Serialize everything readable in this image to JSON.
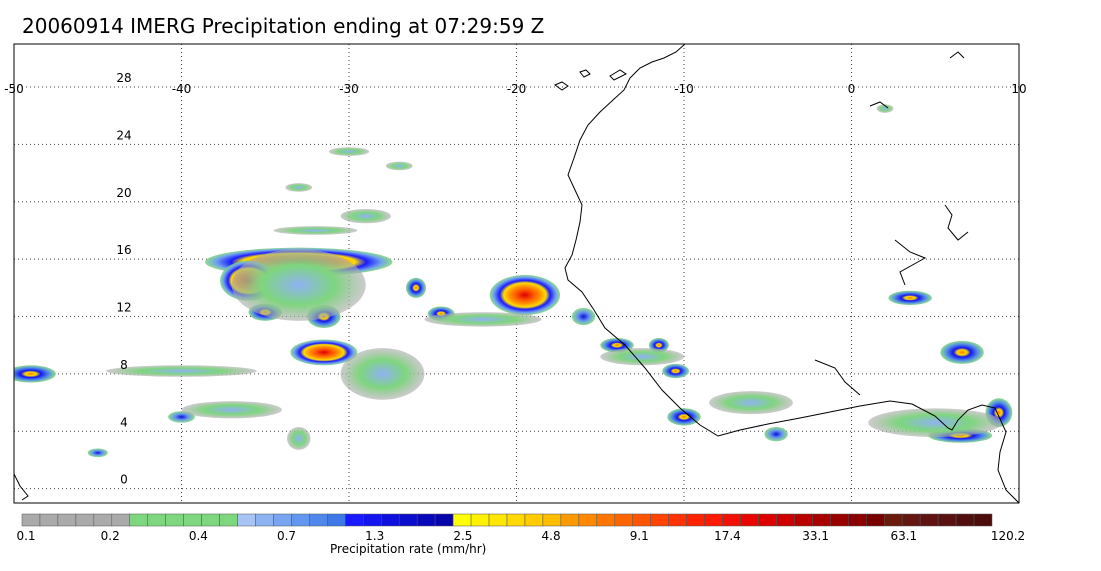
{
  "title": "20060914 IMERG Precipitation ending at 07:29:59 Z",
  "map": {
    "lon_range": [
      -50,
      10
    ],
    "lat_range": [
      -1,
      31
    ],
    "lon_ticks": [
      "-50",
      "-40",
      "-30",
      "-20",
      "-10",
      "0",
      "10"
    ],
    "lat_ticks": [
      "0",
      "4",
      "8",
      "12",
      "16",
      "20",
      "24",
      "28"
    ],
    "lon_tick_values": [
      -50,
      -40,
      -30,
      -20,
      -10,
      0,
      10
    ],
    "lat_tick_values": [
      0,
      4,
      8,
      12,
      16,
      20,
      24,
      28
    ],
    "grid": "dotted",
    "coastline_color": "#000000",
    "precip_cells": [
      {
        "lon": -33.0,
        "lat": 15.8,
        "rlon": 5.6,
        "rlat": 1.0,
        "intensity": 3
      },
      {
        "lon": -36.0,
        "lat": 14.5,
        "rlon": 1.7,
        "rlat": 1.4,
        "intensity": 3
      },
      {
        "lon": -31.5,
        "lat": 9.5,
        "rlon": 2.0,
        "rlat": 0.9,
        "intensity": 3
      },
      {
        "lon": -19.5,
        "lat": 13.5,
        "rlon": 2.1,
        "rlat": 1.4,
        "intensity": 3
      },
      {
        "lon": -26.0,
        "lat": 14.0,
        "rlon": 0.6,
        "rlat": 0.7,
        "intensity": 2
      },
      {
        "lon": -24.5,
        "lat": 12.2,
        "rlon": 0.8,
        "rlat": 0.5,
        "intensity": 2
      },
      {
        "lon": -35.0,
        "lat": 12.3,
        "rlon": 1.0,
        "rlat": 0.6,
        "intensity": 2
      },
      {
        "lon": -31.5,
        "lat": 12.0,
        "rlon": 1.0,
        "rlat": 0.8,
        "intensity": 2
      },
      {
        "lon": -49.0,
        "lat": 8.0,
        "rlon": 1.5,
        "rlat": 0.6,
        "intensity": 2
      },
      {
        "lon": -14.0,
        "lat": 10.0,
        "rlon": 1.0,
        "rlat": 0.5,
        "intensity": 2
      },
      {
        "lon": -11.5,
        "lat": 10.0,
        "rlon": 0.6,
        "rlat": 0.5,
        "intensity": 2
      },
      {
        "lon": -10.5,
        "lat": 8.2,
        "rlon": 0.8,
        "rlat": 0.5,
        "intensity": 2
      },
      {
        "lon": -10.0,
        "lat": 5.0,
        "rlon": 1.0,
        "rlat": 0.6,
        "intensity": 2
      },
      {
        "lon": -4.5,
        "lat": 3.8,
        "rlon": 0.7,
        "rlat": 0.5,
        "intensity": 1
      },
      {
        "lon": 3.5,
        "lat": 13.3,
        "rlon": 1.3,
        "rlat": 0.5,
        "intensity": 2
      },
      {
        "lon": 6.6,
        "lat": 9.5,
        "rlon": 1.3,
        "rlat": 0.8,
        "intensity": 2
      },
      {
        "lon": 6.5,
        "lat": 3.7,
        "rlon": 1.9,
        "rlat": 0.5,
        "intensity": 2
      },
      {
        "lon": 8.8,
        "lat": 5.3,
        "rlon": 0.8,
        "rlat": 1.0,
        "intensity": 2
      },
      {
        "lon": -16.0,
        "lat": 12.0,
        "rlon": 0.7,
        "rlat": 0.6,
        "intensity": 1
      },
      {
        "lon": -40.0,
        "lat": 5.0,
        "rlon": 0.8,
        "rlat": 0.4,
        "intensity": 1
      },
      {
        "lon": -45.0,
        "lat": 2.5,
        "rlon": 0.6,
        "rlat": 0.3,
        "intensity": 1
      },
      {
        "lon": -33.0,
        "lat": 3.5,
        "rlon": 0.7,
        "rlat": 0.8,
        "intensity": 0
      },
      {
        "lon": -28.0,
        "lat": 8.0,
        "rlon": 2.5,
        "rlat": 1.8,
        "intensity": 0
      },
      {
        "lon": -40.0,
        "lat": 8.2,
        "rlon": 4.5,
        "rlat": 0.4,
        "intensity": 0
      },
      {
        "lon": -37.0,
        "lat": 5.5,
        "rlon": 3.0,
        "rlat": 0.6,
        "intensity": 0
      },
      {
        "lon": -33.0,
        "lat": 14.2,
        "rlon": 4.0,
        "rlat": 2.5,
        "intensity": 0
      },
      {
        "lon": -22.0,
        "lat": 11.8,
        "rlon": 3.5,
        "rlat": 0.5,
        "intensity": 0
      },
      {
        "lon": -12.5,
        "lat": 9.2,
        "rlon": 2.5,
        "rlat": 0.6,
        "intensity": 0
      },
      {
        "lon": -6.0,
        "lat": 6.0,
        "rlon": 2.5,
        "rlat": 0.8,
        "intensity": 0
      },
      {
        "lon": 5.0,
        "lat": 4.6,
        "rlon": 4.0,
        "rlat": 1.0,
        "intensity": 0
      },
      {
        "lon": -33.0,
        "lat": 21.0,
        "rlon": 0.8,
        "rlat": 0.3,
        "intensity": 0
      },
      {
        "lon": -30.0,
        "lat": 23.5,
        "rlon": 1.2,
        "rlat": 0.3,
        "intensity": 0
      },
      {
        "lon": -29.0,
        "lat": 19.0,
        "rlon": 1.5,
        "rlat": 0.5,
        "intensity": 0
      },
      {
        "lon": -32.0,
        "lat": 18.0,
        "rlon": 2.5,
        "rlat": 0.3,
        "intensity": 0
      },
      {
        "lon": 2.0,
        "lat": 26.5,
        "rlon": 0.5,
        "rlat": 0.3,
        "intensity": 0
      },
      {
        "lon": -27.0,
        "lat": 22.5,
        "rlon": 0.8,
        "rlat": 0.3,
        "intensity": 0
      }
    ],
    "colorbar": {
      "label": "Precipitation rate (mm/hr)",
      "tick_labels": [
        "0.1",
        "0.2",
        "0.4",
        "0.7",
        "1.3",
        "2.5",
        "4.8",
        "9.1",
        "17.4",
        "33.1",
        "63.1",
        "120.2"
      ],
      "colors": [
        "#aaaaaa",
        "#aaaaaa",
        "#aaaaaa",
        "#aaaaaa",
        "#aaaaaa",
        "#aaaaaa",
        "#7ed67e",
        "#7ed67e",
        "#7ed67e",
        "#7ed67e",
        "#7ed67e",
        "#7ed67e",
        "#a8c4f4",
        "#8fb2f2",
        "#79a4f0",
        "#6396ee",
        "#4f88ea",
        "#3d78e6",
        "#1a1aff",
        "#1414ee",
        "#0f0fdd",
        "#0b0bcc",
        "#0808bb",
        "#0505aa",
        "#ffff00",
        "#fff200",
        "#ffe600",
        "#ffd900",
        "#ffcc00",
        "#ffbf00",
        "#ff9900",
        "#ff8800",
        "#ff7700",
        "#ff6600",
        "#ff5500",
        "#ff4400",
        "#ff3300",
        "#ff2200",
        "#ff1a00",
        "#f21100",
        "#e60800",
        "#dd0000",
        "#cc0000",
        "#bb0000",
        "#aa0000",
        "#990000",
        "#880000",
        "#770000",
        "#6a1a0a",
        "#641610",
        "#5e1212",
        "#581010",
        "#520e0e",
        "#4c0c0c"
      ]
    }
  }
}
